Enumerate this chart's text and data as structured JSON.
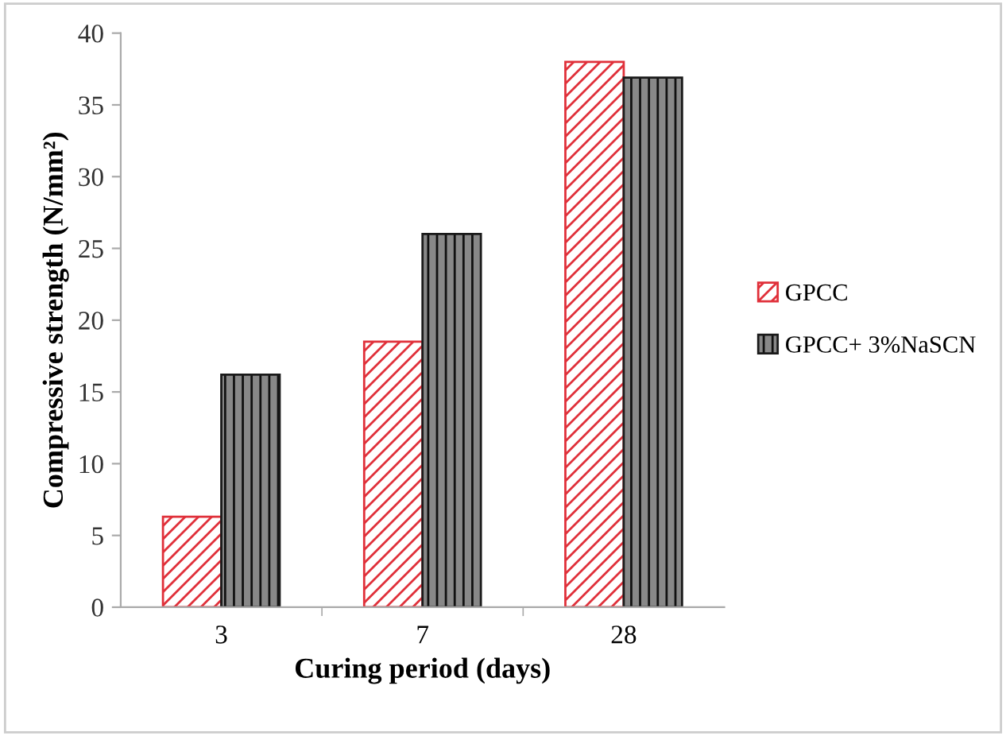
{
  "chart_data": {
    "type": "bar",
    "xlabel": "Curing period (days)",
    "ylabel": "Compressive strength (N/mm²)",
    "categories": [
      "3",
      "7",
      "28"
    ],
    "series": [
      {
        "name": "GPCC",
        "color": "#e0303a",
        "values": [
          6.3,
          18.5,
          38.0
        ]
      },
      {
        "name": "GPCC+ 3%NaSCN",
        "color": "#1a1a1a",
        "values": [
          16.2,
          26.0,
          36.9
        ]
      }
    ],
    "ylim": [
      0,
      40
    ],
    "yticks": [
      0,
      5,
      10,
      15,
      20,
      25,
      30,
      35,
      40
    ],
    "grid": false,
    "legend": "right"
  }
}
